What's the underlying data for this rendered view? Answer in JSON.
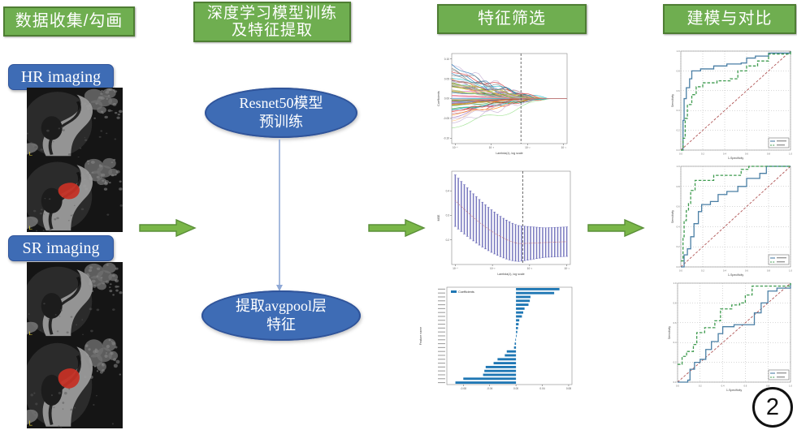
{
  "pipeline": {
    "step1": {
      "header": "数据收集/勾画",
      "hr_label": "HR imaging",
      "sr_label": "SR imaging"
    },
    "step2": {
      "header": [
        "深度学习模型训练",
        "及特征提取"
      ],
      "node1": [
        "Resnet50模型",
        "预训练"
      ],
      "node2": [
        "提取avgpool层",
        "特征"
      ]
    },
    "step3": {
      "header": "特征筛选"
    },
    "step4": {
      "header": "建模与对比"
    }
  },
  "figure_badge": "2",
  "colors": {
    "step_green": "#6fae50",
    "step_green_border": "#4e7d33",
    "blue_node": "#3e6cb5",
    "blue_node_border": "#30549a",
    "arrow_green": "#7ab648",
    "arrow_border": "#5a8f38",
    "connector_blue": "#8fa9d6",
    "bar_blue": "#1f77b4",
    "roc_blue": "#4a7fa5",
    "roc_green": "#3f9b4f",
    "diag_red": "#b05555",
    "cv_blue": "#6a6ab8",
    "cv_red": "#c96a6a",
    "tumor_red": "#c43025"
  },
  "chart_data": [
    {
      "id": "lasso-paths",
      "type": "line",
      "subtype": "lasso-coefficient-paths",
      "title": "",
      "ylabel": "Coefficients",
      "xlabel": "Lambda(λ), log scale",
      "n_lines": 80,
      "vline_frac": 0.6,
      "ylim": [
        -0.15,
        0.15
      ],
      "ytick_labels": [
        "-0.10",
        "-0.05",
        "0.00",
        "0.05",
        "0.10"
      ],
      "xtick_labels": [
        "10⁻⁴",
        "10⁻³",
        "10⁻²",
        "10⁻¹"
      ],
      "note": "~80 colored coefficient paths shrink to 0 as lambda increases; black dashed vertical line marks the selected lambda; red horizontal line at coefficient 0 extends to the right edge"
    },
    {
      "id": "lasso-cv",
      "type": "errorbar",
      "subtype": "lasso-cv-mse",
      "ylabel": "MSE",
      "xlabel": "Lambda(λ), log scale",
      "n_points": 38,
      "vline_frac": 0.6,
      "mean_start": 0.36,
      "mean_min": 0.185,
      "err_start": 0.105,
      "err_end": 0.06,
      "ytick_labels": [
        "0.2",
        "0.3",
        "0.4"
      ],
      "xtick_labels": [
        "10⁻⁴",
        "10⁻³",
        "10⁻²",
        "10⁻¹"
      ],
      "note": "Blue vertical error bars with red mean dots; MSE decreases then plateaus; black dashed vertical line marks the selected lambda"
    },
    {
      "id": "coef-bars",
      "type": "bar",
      "orientation": "horizontal",
      "legend": [
        "Coefficients"
      ],
      "ylabel": "Feature name",
      "xlim": [
        -0.105,
        0.085
      ],
      "xtick_labels": [
        "-0.08",
        "-0.04",
        "0.00",
        "0.04",
        "0.08"
      ],
      "values": [
        0.066,
        0.058,
        0.022,
        0.021,
        0.019,
        0.013,
        0.011,
        0.009,
        0.005,
        0.004,
        0.003,
        0.002,
        0.001,
        -0.001,
        -0.002,
        -0.003,
        -0.014,
        -0.017,
        -0.028,
        -0.034,
        -0.046,
        -0.048,
        -0.05,
        -0.08,
        -0.092
      ],
      "y_labels_note": "25 selected deep-learning feature names on y-axis (illegible at source resolution)"
    },
    {
      "id": "roc-1",
      "type": "line",
      "subtype": "roc",
      "xlabel": "1-Specificity",
      "ylabel": "Sensitivity",
      "diagonal": true,
      "legend_note": "small legend box bottom-right (entries illegible)",
      "series": [
        {
          "name": "blue solid ROC (higher AUC)",
          "color_key": "roc_blue",
          "dash": "solid",
          "points": [
            [
              0,
              0
            ],
            [
              0.02,
              0.3
            ],
            [
              0.03,
              0.52
            ],
            [
              0.05,
              0.63
            ],
            [
              0.08,
              0.72
            ],
            [
              0.1,
              0.8
            ],
            [
              0.18,
              0.82
            ],
            [
              0.3,
              0.85
            ],
            [
              0.42,
              0.87
            ],
            [
              0.55,
              0.88
            ],
            [
              0.6,
              0.93
            ],
            [
              0.68,
              0.95
            ],
            [
              0.8,
              0.98
            ],
            [
              1,
              1
            ]
          ]
        },
        {
          "name": "green dashed ROC",
          "color_key": "roc_green",
          "dash": "dashed",
          "points": [
            [
              0,
              0
            ],
            [
              0.02,
              0.12
            ],
            [
              0.04,
              0.32
            ],
            [
              0.06,
              0.46
            ],
            [
              0.1,
              0.56
            ],
            [
              0.14,
              0.64
            ],
            [
              0.2,
              0.68
            ],
            [
              0.33,
              0.7
            ],
            [
              0.45,
              0.72
            ],
            [
              0.52,
              0.8
            ],
            [
              0.6,
              0.85
            ],
            [
              0.7,
              0.9
            ],
            [
              0.8,
              0.97
            ],
            [
              1,
              1
            ]
          ]
        }
      ]
    },
    {
      "id": "roc-2",
      "type": "line",
      "subtype": "roc",
      "xlabel": "1-Specificity",
      "ylabel": "Sensitivity",
      "diagonal": true,
      "legend_note": "small legend box bottom-right (entries illegible)",
      "series": [
        {
          "name": "blue solid ROC",
          "color_key": "roc_blue",
          "dash": "solid",
          "points": [
            [
              0,
              0
            ],
            [
              0.03,
              0.12
            ],
            [
              0.06,
              0.18
            ],
            [
              0.09,
              0.3
            ],
            [
              0.12,
              0.43
            ],
            [
              0.16,
              0.55
            ],
            [
              0.19,
              0.62
            ],
            [
              0.27,
              0.65
            ],
            [
              0.34,
              0.72
            ],
            [
              0.42,
              0.75
            ],
            [
              0.52,
              0.8
            ],
            [
              0.6,
              0.88
            ],
            [
              0.72,
              0.93
            ],
            [
              0.78,
              1
            ],
            [
              1,
              1
            ]
          ]
        },
        {
          "name": "green dashed ROC (higher AUC)",
          "color_key": "roc_green",
          "dash": "dashed",
          "points": [
            [
              0,
              0.06
            ],
            [
              0.02,
              0.3
            ],
            [
              0.03,
              0.46
            ],
            [
              0.05,
              0.56
            ],
            [
              0.07,
              0.63
            ],
            [
              0.09,
              0.76
            ],
            [
              0.13,
              0.86
            ],
            [
              0.26,
              0.86
            ],
            [
              0.3,
              0.91
            ],
            [
              0.47,
              0.91
            ],
            [
              0.55,
              0.97
            ],
            [
              0.62,
              1
            ],
            [
              1,
              1
            ]
          ]
        }
      ]
    },
    {
      "id": "roc-3",
      "type": "line",
      "subtype": "roc",
      "xlabel": "1-Specificity",
      "ylabel": "Sensitivity",
      "diagonal": true,
      "legend_note": "small legend box bottom-right (entries illegible)",
      "series": [
        {
          "name": "blue solid ROC (near diagonal)",
          "color_key": "roc_blue",
          "dash": "solid",
          "points": [
            [
              0,
              0
            ],
            [
              0.09,
              0.02
            ],
            [
              0.11,
              0.13
            ],
            [
              0.15,
              0.2
            ],
            [
              0.2,
              0.23
            ],
            [
              0.25,
              0.33
            ],
            [
              0.3,
              0.41
            ],
            [
              0.36,
              0.49
            ],
            [
              0.4,
              0.56
            ],
            [
              0.5,
              0.58
            ],
            [
              0.63,
              0.58
            ],
            [
              0.68,
              0.7
            ],
            [
              0.74,
              0.8
            ],
            [
              0.8,
              0.92
            ],
            [
              0.88,
              0.95
            ],
            [
              1,
              1
            ]
          ]
        },
        {
          "name": "green dashed ROC",
          "color_key": "roc_green",
          "dash": "dashed",
          "points": [
            [
              0,
              0.18
            ],
            [
              0.04,
              0.26
            ],
            [
              0.08,
              0.31
            ],
            [
              0.14,
              0.38
            ],
            [
              0.17,
              0.5
            ],
            [
              0.24,
              0.55
            ],
            [
              0.33,
              0.62
            ],
            [
              0.38,
              0.74
            ],
            [
              0.48,
              0.78
            ],
            [
              0.55,
              0.8
            ],
            [
              0.6,
              0.88
            ],
            [
              0.66,
              0.97
            ],
            [
              1,
              1
            ]
          ]
        }
      ]
    }
  ]
}
